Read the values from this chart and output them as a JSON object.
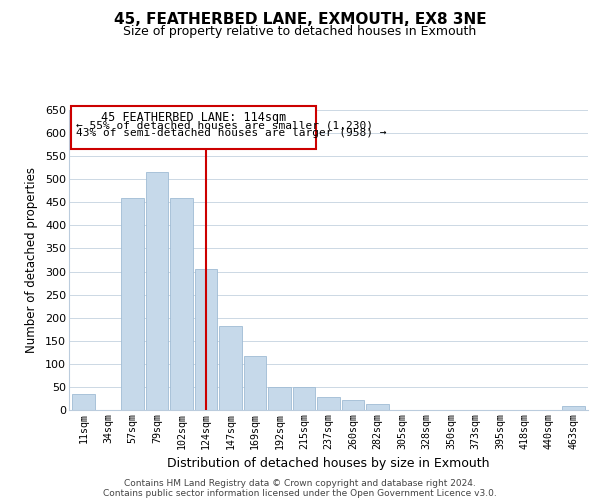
{
  "title": "45, FEATHERBED LANE, EXMOUTH, EX8 3NE",
  "subtitle": "Size of property relative to detached houses in Exmouth",
  "xlabel": "Distribution of detached houses by size in Exmouth",
  "ylabel": "Number of detached properties",
  "bar_labels": [
    "11sqm",
    "34sqm",
    "57sqm",
    "79sqm",
    "102sqm",
    "124sqm",
    "147sqm",
    "169sqm",
    "192sqm",
    "215sqm",
    "237sqm",
    "260sqm",
    "282sqm",
    "305sqm",
    "328sqm",
    "350sqm",
    "373sqm",
    "395sqm",
    "418sqm",
    "440sqm",
    "463sqm"
  ],
  "bar_heights": [
    35,
    0,
    460,
    515,
    460,
    305,
    182,
    118,
    50,
    50,
    28,
    22,
    12,
    0,
    0,
    0,
    0,
    0,
    0,
    0,
    8
  ],
  "bar_color": "#c6d9ea",
  "bar_edge_color": "#a0bcd4",
  "vline_x_index": 5,
  "vline_color": "#cc0000",
  "annotation_title": "45 FEATHERBED LANE: 114sqm",
  "annotation_line1": "← 55% of detached houses are smaller (1,230)",
  "annotation_line2": "43% of semi-detached houses are larger (958) →",
  "annotation_box_color": "#ffffff",
  "annotation_box_edge": "#cc0000",
  "ylim": [
    0,
    650
  ],
  "yticks": [
    0,
    50,
    100,
    150,
    200,
    250,
    300,
    350,
    400,
    450,
    500,
    550,
    600,
    650
  ],
  "footer_line1": "Contains HM Land Registry data © Crown copyright and database right 2024.",
  "footer_line2": "Contains public sector information licensed under the Open Government Licence v3.0.",
  "background_color": "#ffffff",
  "grid_color": "#ccd8e4"
}
